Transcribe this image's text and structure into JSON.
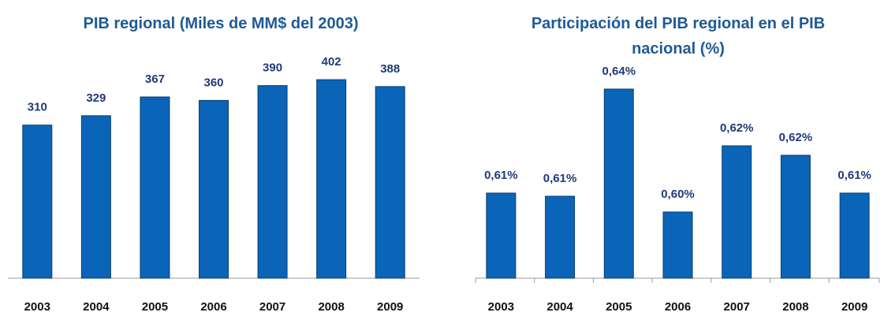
{
  "chart_data": [
    {
      "type": "bar",
      "title": "PIB regional (Miles de MM$ del 2003)",
      "categories": [
        "2003",
        "2004",
        "2005",
        "2006",
        "2007",
        "2008",
        "2009"
      ],
      "values": [
        310,
        329,
        367,
        360,
        390,
        402,
        388
      ],
      "color": "#0a64b8",
      "ylim": [
        0,
        450
      ]
    },
    {
      "type": "bar",
      "title": "Participación del PIB regional en el PIB nacional (%)",
      "categories": [
        "2003",
        "2004",
        "2005",
        "2006",
        "2007",
        "2008",
        "2009"
      ],
      "values": [
        0.607,
        0.606,
        0.64,
        0.601,
        0.622,
        0.619,
        0.607
      ],
      "value_labels": [
        "0,61%",
        "0,61%",
        "0,64%",
        "0,60%",
        "0,62%",
        "0,62%",
        "0,61%"
      ],
      "color": "#0a64b8",
      "ylim": [
        0.58,
        0.65
      ]
    }
  ]
}
